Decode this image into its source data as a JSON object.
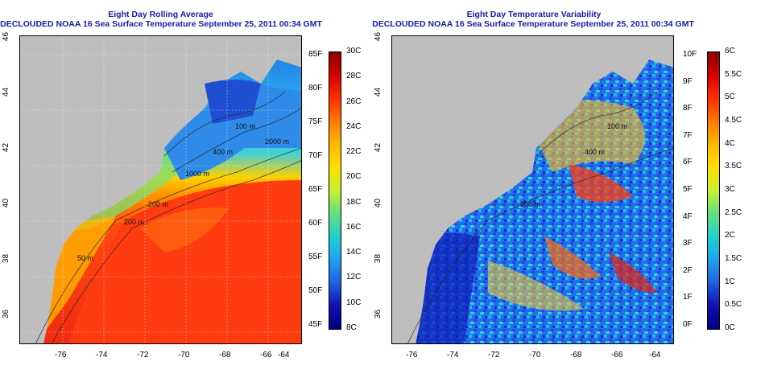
{
  "left_panel": {
    "title_line1": "Eight Day Rolling Average",
    "title_line2": "DECLOUDED NOAA 16 Sea Surface Temperature September 25, 2011 00:34 GMT",
    "lon_ticks": [
      "-76",
      "-74",
      "-72",
      "-70",
      "-68",
      "-66",
      "-64"
    ],
    "lat_ticks": [
      "36",
      "38",
      "40",
      "42",
      "44",
      "46"
    ],
    "contour_labels": [
      "100 m",
      "400 m",
      "1000 m",
      "2000 m",
      "200 m",
      "200 m",
      "50 m"
    ],
    "colorbar": {
      "f_labels": [
        "85F",
        "80F",
        "75F",
        "70F",
        "65F",
        "60F",
        "55F",
        "50F",
        "45F"
      ],
      "c_labels": [
        "30C",
        "28C",
        "26C",
        "24C",
        "22C",
        "20C",
        "18C",
        "16C",
        "14C",
        "12C",
        "10C",
        "8C"
      ],
      "colors": [
        "#8b0000",
        "#d40000",
        "#ff3000",
        "#ff7a00",
        "#ffb800",
        "#ffe000",
        "#c8f030",
        "#60e080",
        "#20d0d0",
        "#20a0f0",
        "#2060e0",
        "#1010b0",
        "#000080"
      ]
    }
  },
  "right_panel": {
    "title_line1": "Eight Day Temperature Variability",
    "title_line2": "DECLOUDED NOAA 16 Sea Surface Temperature September 25, 2011 00:34 GMT",
    "lon_ticks": [
      "-76",
      "-74",
      "-72",
      "-70",
      "-68",
      "-66",
      "-64"
    ],
    "lat_ticks": [
      "36",
      "38",
      "40",
      "42",
      "44",
      "46"
    ],
    "contour_labels": [
      "100 m",
      "400 m",
      "200 m"
    ],
    "colorbar": {
      "f_labels": [
        "10F",
        "9F",
        "8F",
        "7F",
        "6F",
        "5F",
        "4F",
        "3F",
        "2F",
        "1F",
        "0F"
      ],
      "c_labels": [
        "6C",
        "5.5C",
        "5C",
        "4.5C",
        "4C",
        "3.5C",
        "3C",
        "2.5C",
        "2C",
        "1.5C",
        "1C",
        "0.5C",
        "0C"
      ],
      "colors": [
        "#8b0000",
        "#d40000",
        "#ff3000",
        "#ff7a00",
        "#ffb800",
        "#ffe000",
        "#c8f030",
        "#60e080",
        "#20d0d0",
        "#20a0f0",
        "#2060e0",
        "#1010b0",
        "#000080"
      ]
    }
  }
}
